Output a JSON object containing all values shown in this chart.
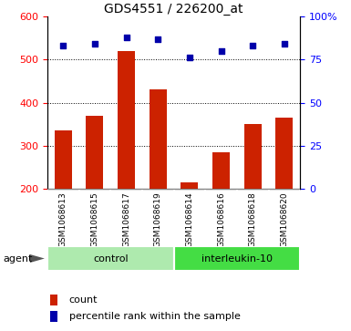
{
  "title": "GDS4551 / 226200_at",
  "samples": [
    "GSM1068613",
    "GSM1068615",
    "GSM1068617",
    "GSM1068619",
    "GSM1068614",
    "GSM1068616",
    "GSM1068618",
    "GSM1068620"
  ],
  "counts": [
    335,
    370,
    520,
    430,
    215,
    285,
    350,
    365
  ],
  "percentile_ranks": [
    83,
    84,
    88,
    87,
    76,
    80,
    83,
    84
  ],
  "control_indices": [
    0,
    1,
    2,
    3
  ],
  "il10_indices": [
    4,
    5,
    6,
    7
  ],
  "bar_color": "#CC2200",
  "dot_color": "#0000AA",
  "ylim_left": [
    200,
    600
  ],
  "ylim_right": [
    0,
    100
  ],
  "yticks_left": [
    200,
    300,
    400,
    500,
    600
  ],
  "yticks_right": [
    0,
    25,
    50,
    75,
    100
  ],
  "ytick_labels_right": [
    "0",
    "25",
    "50",
    "75",
    "100%"
  ],
  "grid_values": [
    300,
    400,
    500
  ],
  "bar_width": 0.55,
  "label_bg": "#C8C8C8",
  "label_bg_border": "#AAAAAA",
  "control_color": "#AEEAAE",
  "il10_color": "#44DD44",
  "agent_label": "agent",
  "legend_count_label": "count",
  "legend_percentile_label": "percentile rank within the sample",
  "title_fontsize": 10,
  "tick_fontsize": 8,
  "label_fontsize": 6.5,
  "group_fontsize": 8
}
